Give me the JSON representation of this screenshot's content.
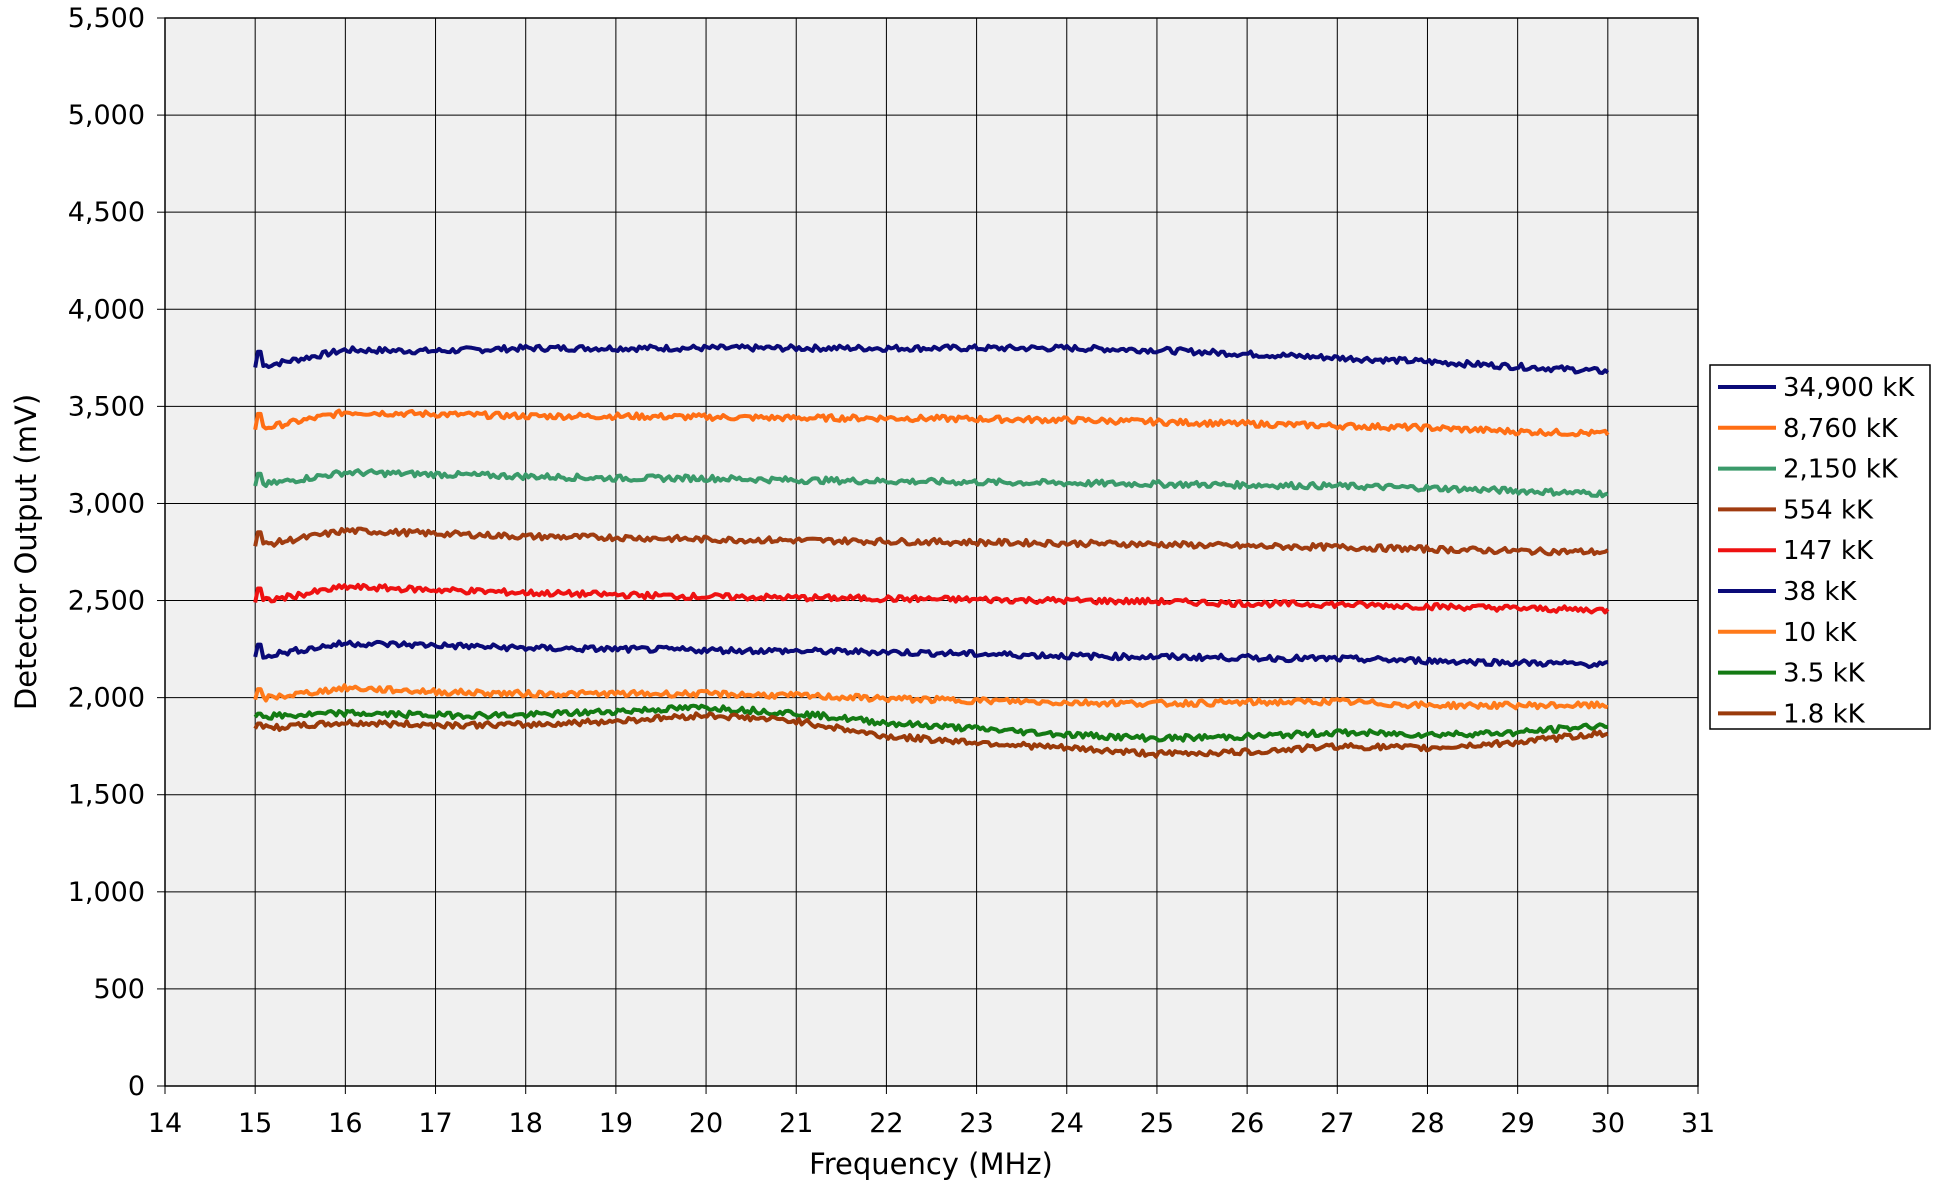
{
  "chart_data": {
    "type": "line",
    "title": "",
    "xlabel": "Frequency (MHz)",
    "ylabel": "Detector Output (mV)",
    "xlim": [
      14,
      31
    ],
    "ylim": [
      0,
      5500
    ],
    "x_ticks": [
      "14",
      "15",
      "16",
      "17",
      "18",
      "19",
      "20",
      "21",
      "22",
      "23",
      "24",
      "25",
      "26",
      "27",
      "28",
      "29",
      "30",
      "31"
    ],
    "y_ticks": [
      "0",
      "500",
      "1,000",
      "1,500",
      "2,000",
      "2,500",
      "3,000",
      "3,500",
      "4,000",
      "4,500",
      "5,000",
      "5,500"
    ],
    "grid": true,
    "legend_position": "right",
    "x": [
      15,
      16,
      17,
      18,
      19,
      20,
      21,
      22,
      23,
      24,
      25,
      26,
      27,
      28,
      29,
      30
    ],
    "series": [
      {
        "name": "34,900 kK",
        "color": "#0a0a78",
        "values": [
          3700,
          3790,
          3785,
          3800,
          3800,
          3800,
          3800,
          3800,
          3800,
          3800,
          3790,
          3770,
          3750,
          3730,
          3705,
          3680
        ]
      },
      {
        "name": "8,760 kK",
        "color": "#ff6e14",
        "values": [
          3380,
          3470,
          3460,
          3450,
          3450,
          3445,
          3440,
          3440,
          3435,
          3430,
          3420,
          3410,
          3400,
          3390,
          3370,
          3360
        ]
      },
      {
        "name": "2,150 kK",
        "color": "#3a9a6a",
        "values": [
          3090,
          3160,
          3150,
          3140,
          3130,
          3130,
          3120,
          3115,
          3110,
          3105,
          3100,
          3095,
          3090,
          3080,
          3065,
          3050
        ]
      },
      {
        "name": "554 kK",
        "color": "#a03c10",
        "values": [
          2780,
          2860,
          2845,
          2830,
          2825,
          2815,
          2810,
          2805,
          2800,
          2795,
          2790,
          2780,
          2775,
          2765,
          2755,
          2750
        ]
      },
      {
        "name": "147 kK",
        "color": "#ee1111",
        "values": [
          2490,
          2570,
          2555,
          2540,
          2530,
          2520,
          2515,
          2510,
          2505,
          2500,
          2495,
          2485,
          2480,
          2470,
          2460,
          2450
        ]
      },
      {
        "name": "38 kK",
        "color": "#0a0a78",
        "values": [
          2210,
          2280,
          2270,
          2255,
          2250,
          2245,
          2240,
          2235,
          2225,
          2215,
          2210,
          2205,
          2200,
          2190,
          2180,
          2170
        ]
      },
      {
        "name": "10 kK",
        "color": "#ff7a1a",
        "values": [
          1990,
          2050,
          2030,
          2020,
          2020,
          2020,
          2010,
          1995,
          1985,
          1975,
          1970,
          1975,
          1980,
          1960,
          1960,
          1960
        ]
      },
      {
        "name": "3.5 kK",
        "color": "#137a13",
        "values": [
          1900,
          1920,
          1910,
          1910,
          1930,
          1950,
          1920,
          1870,
          1840,
          1810,
          1790,
          1800,
          1820,
          1810,
          1820,
          1860
        ]
      },
      {
        "name": "1.8 kK",
        "color": "#9a3a0a",
        "values": [
          1840,
          1870,
          1860,
          1860,
          1880,
          1910,
          1880,
          1800,
          1770,
          1740,
          1710,
          1720,
          1750,
          1740,
          1770,
          1820
        ]
      }
    ]
  }
}
